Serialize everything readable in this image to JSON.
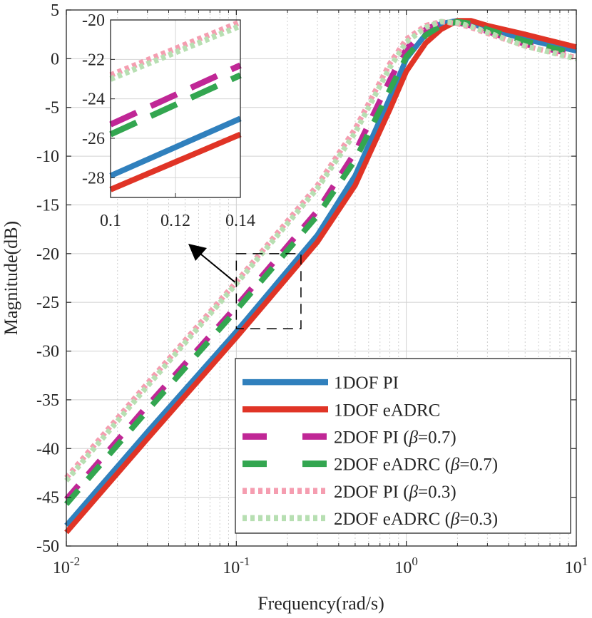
{
  "chart_data": {
    "type": "line",
    "xscale": "log",
    "xlabel": "Frequency(rad/s)",
    "ylabel": "Magnitude(dB)",
    "xlim": [
      0.01,
      10
    ],
    "ylim": [
      -50,
      5
    ],
    "xticks": [
      {
        "value": 0.01,
        "base": "10",
        "exp": "-2"
      },
      {
        "value": 0.1,
        "base": "10",
        "exp": "-1"
      },
      {
        "value": 1,
        "base": "10",
        "exp": "0"
      },
      {
        "value": 10,
        "base": "10",
        "exp": "1"
      }
    ],
    "yticks": [
      {
        "value": 5,
        "label": "5"
      },
      {
        "value": 0,
        "label": "0"
      },
      {
        "value": -5,
        "label": "-5"
      },
      {
        "value": -10,
        "label": "-10"
      },
      {
        "value": -15,
        "label": "-15"
      },
      {
        "value": -20,
        "label": "-20"
      },
      {
        "value": -25,
        "label": "-25"
      },
      {
        "value": -30,
        "label": "-30"
      },
      {
        "value": -35,
        "label": "-35"
      },
      {
        "value": -40,
        "label": "-40"
      },
      {
        "value": -45,
        "label": "-45"
      },
      {
        "value": -50,
        "label": "-50"
      }
    ],
    "grid": true,
    "legend_position": "bottom-right",
    "series": [
      {
        "name": "1DOF PI",
        "legend_prefix": "1DOF PI",
        "legend_beta": "",
        "color": "#3080bd",
        "style": "solid",
        "x": [
          0.01,
          0.03,
          0.1,
          0.3,
          0.5,
          0.8,
          1.0,
          1.3,
          1.6,
          2.0,
          2.4,
          3.0,
          5.0,
          10.0
        ],
        "y": [
          -47.9,
          -38.3,
          -28.0,
          -18.1,
          -12.0,
          -4.0,
          0.0,
          2.5,
          3.6,
          3.9,
          3.6,
          3.1,
          2.0,
          0.8
        ]
      },
      {
        "name": "1DOF eADRC",
        "legend_prefix": "1DOF eADRC",
        "legend_beta": "",
        "color": "#e03426",
        "style": "solid",
        "x": [
          0.01,
          0.03,
          0.1,
          0.3,
          0.5,
          0.8,
          1.0,
          1.3,
          1.6,
          2.0,
          2.4,
          3.0,
          5.0,
          10.0
        ],
        "y": [
          -48.6,
          -39.0,
          -28.6,
          -18.8,
          -13.0,
          -5.2,
          -1.3,
          1.6,
          3.0,
          3.9,
          3.9,
          3.4,
          2.5,
          1.2
        ]
      },
      {
        "name": "2DOF PI (β=0.7)",
        "legend_prefix": "2DOF PI (",
        "legend_beta": "=0.7)",
        "color": "#c02796",
        "style": "dashed",
        "x": [
          0.01,
          0.03,
          0.1,
          0.3,
          0.5,
          0.8,
          1.0,
          1.3,
          1.6,
          2.0,
          2.4,
          3.0,
          5.0,
          10.0
        ],
        "y": [
          -45.2,
          -35.6,
          -25.4,
          -15.6,
          -9.6,
          -2.2,
          1.0,
          3.0,
          3.7,
          3.7,
          3.4,
          2.8,
          1.5,
          0.4
        ]
      },
      {
        "name": "2DOF eADRC (β=0.7)",
        "legend_prefix": "2DOF eADRC (",
        "legend_beta": "=0.7)",
        "color": "#33a650",
        "style": "dashed",
        "x": [
          0.01,
          0.03,
          0.1,
          0.3,
          0.5,
          0.8,
          1.0,
          1.3,
          1.6,
          2.0,
          2.4,
          3.0,
          5.0,
          10.0
        ],
        "y": [
          -45.7,
          -36.1,
          -25.8,
          -16.1,
          -10.4,
          -3.2,
          0.2,
          2.4,
          3.4,
          3.8,
          3.6,
          3.0,
          1.8,
          0.5
        ]
      },
      {
        "name": "2DOF PI (β=0.3)",
        "legend_prefix": "2DOF PI (",
        "legend_beta": "=0.3)",
        "color": "#f59db0",
        "style": "dotted",
        "x": [
          0.01,
          0.03,
          0.1,
          0.3,
          0.5,
          0.8,
          1.0,
          1.3,
          1.6,
          2.0,
          2.4,
          3.0,
          5.0,
          10.0
        ],
        "y": [
          -43.0,
          -33.3,
          -22.9,
          -13.0,
          -7.2,
          -0.5,
          2.0,
          3.4,
          3.8,
          3.6,
          3.2,
          2.6,
          1.3,
          0.1
        ]
      },
      {
        "name": "2DOF eADRC (β=0.3)",
        "legend_prefix": "2DOF eADRC (",
        "legend_beta": "=0.3)",
        "color": "#b7dfb2",
        "style": "dotted",
        "x": [
          0.01,
          0.03,
          0.1,
          0.3,
          0.5,
          0.8,
          1.0,
          1.3,
          1.6,
          2.0,
          2.4,
          3.0,
          5.0,
          10.0
        ],
        "y": [
          -43.3,
          -33.6,
          -23.1,
          -13.3,
          -7.6,
          -0.9,
          1.7,
          3.2,
          3.8,
          3.7,
          3.3,
          2.7,
          1.3,
          0.0
        ]
      }
    ],
    "inset": {
      "xlim": [
        0.1,
        0.14
      ],
      "ylim": [
        -29,
        -20
      ],
      "xticks": [
        {
          "value": 0.1,
          "label": "0.1"
        },
        {
          "value": 0.12,
          "label": "0.12"
        },
        {
          "value": 0.14,
          "label": "0.14"
        }
      ],
      "yticks": [
        {
          "value": -20,
          "label": "-20"
        },
        {
          "value": -22,
          "label": "-22"
        },
        {
          "value": -24,
          "label": "-24"
        },
        {
          "value": -26,
          "label": "-26"
        },
        {
          "value": -28,
          "label": "-28"
        }
      ],
      "series": [
        {
          "name": "1DOF PI",
          "x": [
            0.1,
            0.14
          ],
          "y": [
            -27.9,
            -25.0
          ]
        },
        {
          "name": "1DOF eADRC",
          "x": [
            0.1,
            0.14
          ],
          "y": [
            -28.6,
            -25.8
          ]
        },
        {
          "name": "2DOF PI (β=0.7)",
          "x": [
            0.1,
            0.14
          ],
          "y": [
            -25.3,
            -22.3
          ]
        },
        {
          "name": "2DOF eADRC (β=0.7)",
          "x": [
            0.1,
            0.14
          ],
          "y": [
            -25.8,
            -22.8
          ]
        },
        {
          "name": "2DOF PI (β=0.3)",
          "x": [
            0.1,
            0.14
          ],
          "y": [
            -22.8,
            -20.1
          ]
        },
        {
          "name": "2DOF eADRC (β=0.3)",
          "x": [
            0.1,
            0.14
          ],
          "y": [
            -23.0,
            -20.3
          ]
        }
      ],
      "zoom_box": {
        "xlim": [
          0.1,
          0.24
        ],
        "ylim": [
          -27.7,
          -20
        ]
      }
    },
    "beta_symbol": "β"
  }
}
